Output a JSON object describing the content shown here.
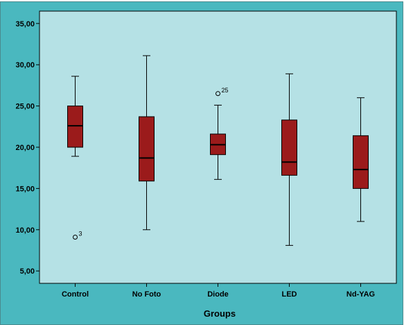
{
  "chart_data": {
    "type": "boxplot",
    "title": "",
    "xlabel": "Groups",
    "ylabel": "",
    "ylim": [
      3.5,
      36.5
    ],
    "yticks": [
      5,
      10,
      15,
      20,
      25,
      30,
      35
    ],
    "ytick_labels": [
      "5,00",
      "10,00",
      "15,00",
      "20,00",
      "25,00",
      "30,00",
      "35,00"
    ],
    "grid": false,
    "colors": {
      "figure_bg": "#ffffff",
      "frame_bg": "#4ab8bf",
      "plot_bg": "#b5e1e5",
      "box_fill": "#9b1b1b",
      "line": "#000000"
    },
    "categories": [
      "Control",
      "No Foto",
      "Diode",
      "LED",
      "Nd-YAG"
    ],
    "boxes": [
      {
        "category": "Control",
        "whisker_low": 18.9,
        "q1": 20.0,
        "median": 22.6,
        "q3": 25.0,
        "whisker_high": 28.6,
        "outliers": [
          {
            "value": 9.1,
            "label": "3"
          }
        ]
      },
      {
        "category": "No Foto",
        "whisker_low": 10.0,
        "q1": 15.9,
        "median": 18.7,
        "q3": 23.7,
        "whisker_high": 31.1,
        "outliers": []
      },
      {
        "category": "Diode",
        "whisker_low": 16.1,
        "q1": 19.1,
        "median": 20.3,
        "q3": 21.6,
        "whisker_high": 25.1,
        "outliers": [
          {
            "value": 26.5,
            "label": "25"
          }
        ]
      },
      {
        "category": "LED",
        "whisker_low": 8.1,
        "q1": 16.6,
        "median": 18.2,
        "q3": 23.3,
        "whisker_high": 28.9,
        "outliers": []
      },
      {
        "category": "Nd-YAG",
        "whisker_low": 11.0,
        "q1": 15.0,
        "median": 17.3,
        "q3": 21.4,
        "whisker_high": 26.0,
        "outliers": []
      }
    ]
  }
}
